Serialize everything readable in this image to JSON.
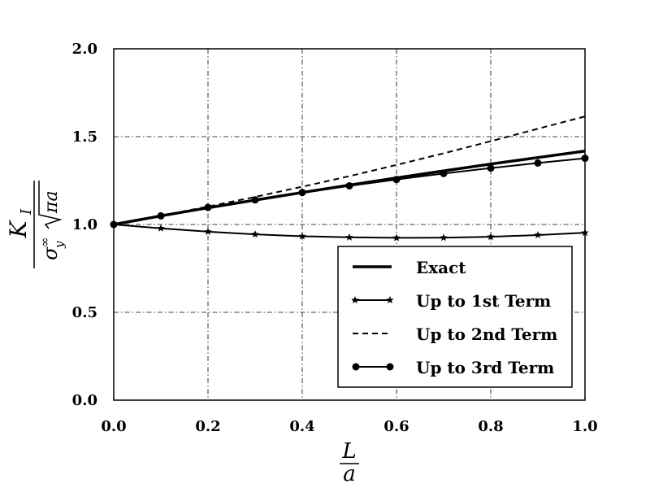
{
  "chart_data": {
    "type": "line",
    "xlabel": "L/a",
    "ylabel": "K_I / (σ_y^∞ √(πa))",
    "xlabel_parts": {
      "numerator": "L",
      "denominator": "a"
    },
    "ylabel_parts": {
      "numerator": "K",
      "numerator_sub": "I",
      "denominator": "σ",
      "denominator_sub": "y",
      "denominator_sup": "∞",
      "denominator_root": "πa"
    },
    "xlim": [
      0.0,
      1.0
    ],
    "ylim": [
      0.0,
      2.0
    ],
    "x_ticks": [
      "0.0",
      "0.2",
      "0.4",
      "0.6",
      "0.8",
      "1.0"
    ],
    "y_ticks": [
      "0.0",
      "0.5",
      "1.0",
      "1.5",
      "2.0"
    ],
    "grid": true,
    "legend_position": "bottom-right",
    "series": [
      {
        "name": "Exact",
        "style": "thick-solid",
        "marker": "none",
        "x": [
          0.0,
          0.1,
          0.2,
          0.3,
          0.4,
          0.5,
          0.6,
          0.7,
          0.8,
          0.9,
          1.0
        ],
        "y": [
          1.0,
          1.049,
          1.095,
          1.139,
          1.182,
          1.224,
          1.265,
          1.305,
          1.344,
          1.381,
          1.418
        ]
      },
      {
        "name": "Up to 1st Term",
        "style": "solid",
        "marker": "star",
        "x": [
          0.0,
          0.1,
          0.2,
          0.3,
          0.4,
          0.5,
          0.6,
          0.7,
          0.8,
          0.9,
          1.0
        ],
        "y": [
          1.0,
          0.978,
          0.959,
          0.944,
          0.933,
          0.927,
          0.924,
          0.925,
          0.93,
          0.94,
          0.953
        ]
      },
      {
        "name": "Up to 2nd Term",
        "style": "dashed",
        "marker": "none",
        "x": [
          0.0,
          0.1,
          0.2,
          0.3,
          0.4,
          0.5,
          0.6,
          0.7,
          0.8,
          0.9,
          1.0
        ],
        "y": [
          1.0,
          1.05,
          1.102,
          1.157,
          1.215,
          1.275,
          1.339,
          1.405,
          1.474,
          1.545,
          1.615
        ]
      },
      {
        "name": "Up to 3rd Term",
        "style": "solid",
        "marker": "circle",
        "x": [
          0.0,
          0.1,
          0.2,
          0.3,
          0.4,
          0.5,
          0.6,
          0.7,
          0.8,
          0.9,
          1.0
        ],
        "y": [
          1.0,
          1.049,
          1.097,
          1.14,
          1.182,
          1.22,
          1.256,
          1.29,
          1.321,
          1.35,
          1.377
        ]
      }
    ]
  }
}
